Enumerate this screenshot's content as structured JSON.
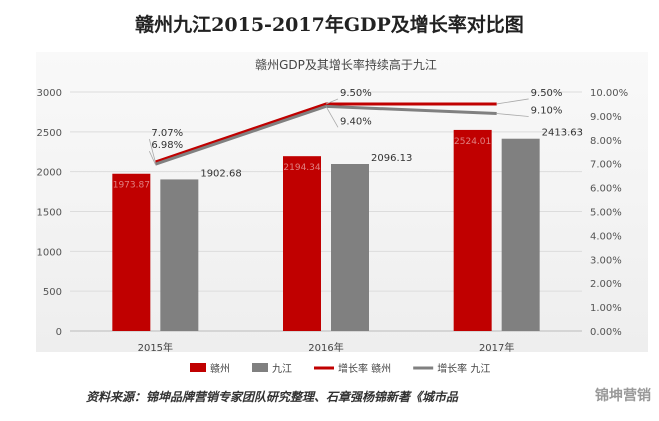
{
  "page": {
    "title": "赣州九江2015-2017年GDP及增长率对比图",
    "source": "资料来源：锦坤品牌营销专家团队研究整理、石章强杨锦新著《城市品",
    "watermark": "锦坤营销"
  },
  "colors": {
    "ganzhou": "#c00000",
    "jiujiang": "#808080",
    "growth_ganzhou": "#c00000",
    "growth_jiujiang": "#808080"
  },
  "chart_data": {
    "type": "bar",
    "title": "赣州GDP及其增长率持续高于九江",
    "categories": [
      "2015年",
      "2016年",
      "2017年"
    ],
    "series": [
      {
        "name": "赣州",
        "type": "bar",
        "axis": "left",
        "values": [
          1973.87,
          2194.34,
          2524.01
        ],
        "labels": [
          "1973.87",
          "2194.34",
          "2524.01"
        ]
      },
      {
        "name": "九江",
        "type": "bar",
        "axis": "left",
        "values": [
          1902.68,
          2096.13,
          2413.63
        ],
        "labels": [
          "1902.68",
          "2096.13",
          "2413.63"
        ]
      },
      {
        "name": "增长率 赣州",
        "type": "line",
        "axis": "right",
        "values": [
          7.07,
          9.5,
          9.5
        ],
        "labels": [
          "7.07%",
          "9.50%",
          "9.50%"
        ]
      },
      {
        "name": "增长率 九江",
        "type": "line",
        "axis": "right",
        "values": [
          6.98,
          9.4,
          9.1
        ],
        "labels": [
          "6.98%",
          "9.40%",
          "9.10%"
        ]
      }
    ],
    "y_left": {
      "min": 0,
      "max": 3000,
      "step": 500,
      "ticks": [
        "0",
        "500",
        "1000",
        "1500",
        "2000",
        "2500",
        "3000"
      ]
    },
    "y_right": {
      "min": 0,
      "max": 10,
      "step": 1,
      "ticks": [
        "0.00%",
        "1.00%",
        "2.00%",
        "3.00%",
        "4.00%",
        "5.00%",
        "6.00%",
        "7.00%",
        "8.00%",
        "9.00%",
        "10.00%"
      ]
    },
    "grid": true,
    "legend_position": "bottom"
  }
}
